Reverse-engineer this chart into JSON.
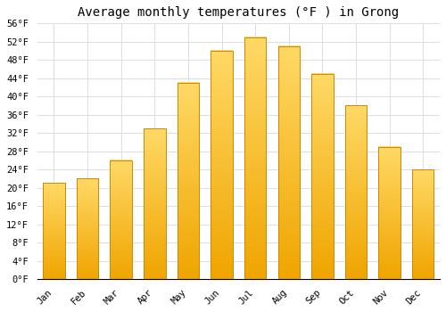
{
  "title": "Average monthly temperatures (°F ) in Grong",
  "months": [
    "Jan",
    "Feb",
    "Mar",
    "Apr",
    "May",
    "Jun",
    "Jul",
    "Aug",
    "Sep",
    "Oct",
    "Nov",
    "Dec"
  ],
  "values": [
    21,
    22,
    26,
    33,
    43,
    50,
    53,
    51,
    45,
    38,
    29,
    24
  ],
  "bar_color_top": "#FFD966",
  "bar_color_bottom": "#F0A500",
  "bar_edge_color": "#CC8800",
  "background_color": "#FFFFFF",
  "grid_color": "#DDDDDD",
  "ylim": [
    0,
    56
  ],
  "yticks": [
    0,
    4,
    8,
    12,
    16,
    20,
    24,
    28,
    32,
    36,
    40,
    44,
    48,
    52,
    56
  ],
  "ytick_labels": [
    "0°F",
    "4°F",
    "8°F",
    "12°F",
    "16°F",
    "20°F",
    "24°F",
    "28°F",
    "32°F",
    "36°F",
    "40°F",
    "44°F",
    "48°F",
    "52°F",
    "56°F"
  ],
  "title_fontsize": 10,
  "tick_fontsize": 7.5,
  "font_family": "monospace",
  "bar_width": 0.65
}
